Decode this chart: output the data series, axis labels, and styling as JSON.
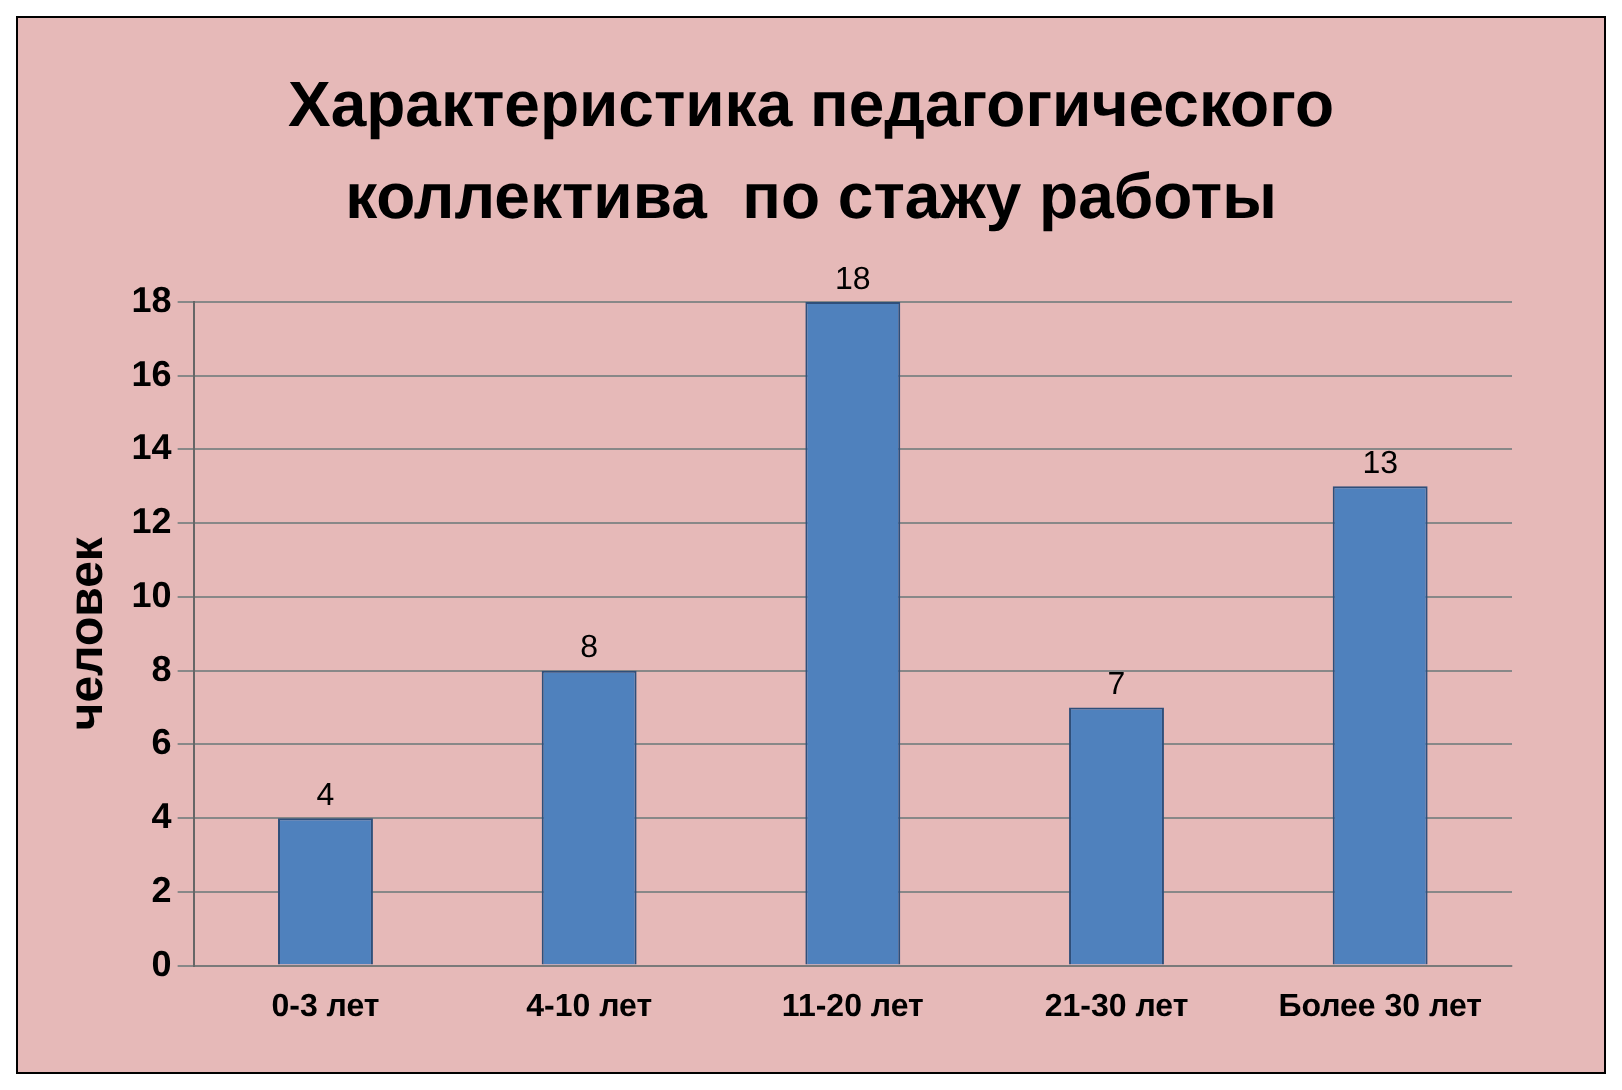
{
  "chart_data": {
    "type": "bar",
    "title": "Характеристика педагогического коллектива  по стажу работы",
    "ylabel": "человек",
    "categories": [
      "0-3 лет",
      "4-10 лет",
      "11-20 лет",
      "21-30 лет",
      "Более 30 лет"
    ],
    "values": [
      4,
      8,
      18,
      7,
      13
    ],
    "color": "#4f81bd",
    "ylim": [
      0,
      18
    ],
    "yticks": [
      0,
      2,
      4,
      6,
      8,
      10,
      12,
      14,
      16,
      18
    ],
    "grid": "y",
    "data_labels": true,
    "legend": false
  }
}
